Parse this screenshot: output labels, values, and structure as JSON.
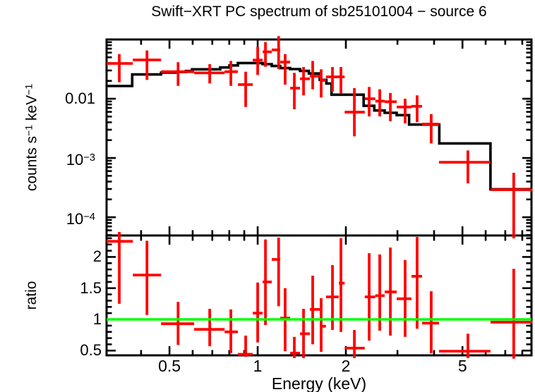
{
  "title": "Swift−XRT PC spectrum of sb25101004 − source 6",
  "colors": {
    "data": "#ff0000",
    "model": "#000000",
    "reference": "#00ff00",
    "axis": "#000000"
  },
  "chart_data": [
    {
      "type": "scatter",
      "subtype": "x-ray-spectrum-errorbars-with-model-histogram",
      "title": "Swift−XRT PC spectrum of sb25101004 − source 6",
      "ylabel_parts": [
        {
          "t": "counts s"
        },
        {
          "t": "−1",
          "sup": true
        },
        {
          "t": " keV"
        },
        {
          "t": "−1",
          "sup": true
        }
      ],
      "x_scale": "log",
      "y_scale": "log",
      "xlim": [
        0.305,
        8.6
      ],
      "ylim": [
        4.92e-05,
        0.1
      ],
      "xticks_major": [
        0.5,
        1,
        2,
        5
      ],
      "yticks": [
        {
          "v": 0.01,
          "parts": [
            {
              "t": "0.01"
            }
          ]
        },
        {
          "v": 0.001,
          "parts": [
            {
              "t": "10"
            },
            {
              "t": "−3",
              "sup": true
            }
          ]
        },
        {
          "v": 0.0001,
          "parts": [
            {
              "t": "10"
            },
            {
              "t": "−4",
              "sup": true
            }
          ]
        }
      ],
      "legend": null,
      "grid": false,
      "series": [
        {
          "name": "data",
          "color": "#ff0000",
          "style": "errorbar-cross",
          "points_format": [
            "E_lo_keV",
            "E_keV",
            "E_hi_keV",
            "rate_lo",
            "rate",
            "rate_hi"
          ],
          "points": [
            [
              0.305,
              0.337,
              0.375,
              0.019,
              0.0394,
              0.0567
            ],
            [
              0.375,
              0.419,
              0.468,
              0.0208,
              0.0452,
              0.0653
            ],
            [
              0.468,
              0.535,
              0.607,
              0.0165,
              0.0286,
              0.0413
            ],
            [
              0.607,
              0.686,
              0.771,
              0.0181,
              0.0273,
              0.0383
            ],
            [
              0.771,
              0.81,
              0.856,
              0.0165,
              0.0286,
              0.0434
            ],
            [
              0.856,
              0.91,
              0.962,
              0.00726,
              0.0173,
              0.0286
            ],
            [
              0.962,
              1.0,
              1.04,
              0.0252,
              0.0449,
              0.0754
            ],
            [
              1.04,
              1.063,
              1.117,
              0.0346,
              0.0619,
              0.0904
            ],
            [
              1.117,
              1.179,
              1.194,
              0.0316,
              0.0668,
              0.114
            ],
            [
              1.194,
              1.241,
              1.291,
              0.0173,
              0.0416,
              0.0567
            ],
            [
              1.291,
              1.334,
              1.395,
              0.00663,
              0.0151,
              0.0273
            ],
            [
              1.395,
              1.434,
              1.507,
              0.0114,
              0.0217,
              0.0343
            ],
            [
              1.507,
              1.541,
              1.629,
              0.0144,
              0.024,
              0.0434
            ],
            [
              1.629,
              1.647,
              1.71,
              0.0105,
              0.0204,
              0.0314
            ],
            [
              1.71,
              1.8,
              1.892,
              0.0132,
              0.0234,
              0.0343
            ],
            [
              1.892,
              1.924,
              1.981,
              0.0121,
              0.0234,
              0.0343
            ],
            [
              1.981,
              2.138,
              2.32,
              0.00232,
              0.00594,
              0.0151
            ],
            [
              2.32,
              2.402,
              2.52,
              0.00503,
              0.01,
              0.0158
            ],
            [
              2.52,
              2.61,
              2.713,
              0.00503,
              0.0091,
              0.0144
            ],
            [
              2.713,
              2.837,
              2.981,
              0.00418,
              0.0089,
              0.0125
            ],
            [
              2.981,
              3.186,
              3.349,
              0.00384,
              0.00726,
              0.01
            ],
            [
              3.349,
              3.501,
              3.64,
              0.00402,
              0.00746,
              0.0114
            ],
            [
              3.64,
              3.911,
              4.157,
              0.00176,
              0.00373,
              0.00551
            ],
            [
              4.157,
              5.218,
              6.231,
              0.000373,
              0.000848,
              0.00134
            ],
            [
              6.231,
              7.481,
              8.66,
              4.4e-05,
              0.000291,
              0.000563
            ]
          ]
        },
        {
          "name": "model",
          "color": "#000000",
          "style": "histogram",
          "segments_format": [
            "E_lo_keV",
            "E_hi_keV",
            "rate"
          ],
          "segments": [
            [
              0.305,
              0.373,
              0.0164
            ],
            [
              0.373,
              0.468,
              0.0257
            ],
            [
              0.468,
              0.524,
              0.0276
            ],
            [
              0.524,
              0.569,
              0.0283
            ],
            [
              0.569,
              0.597,
              0.0294
            ],
            [
              0.597,
              0.745,
              0.0314
            ],
            [
              0.745,
              0.801,
              0.0337
            ],
            [
              0.801,
              0.856,
              0.0365
            ],
            [
              0.856,
              1.04,
              0.04
            ],
            [
              1.04,
              1.117,
              0.0383
            ],
            [
              1.117,
              1.194,
              0.0357
            ],
            [
              1.194,
              1.291,
              0.0329
            ],
            [
              1.291,
              1.395,
              0.0316
            ],
            [
              1.395,
              1.495,
              0.0295
            ],
            [
              1.495,
              1.629,
              0.0267
            ],
            [
              1.629,
              1.716,
              0.0208
            ],
            [
              1.716,
              1.787,
              0.0181
            ],
            [
              1.787,
              2.299,
              0.0117
            ],
            [
              2.299,
              2.5,
              0.0076
            ],
            [
              2.5,
              2.713,
              0.00633
            ],
            [
              2.713,
              2.981,
              0.00578
            ],
            [
              2.981,
              3.286,
              0.00528
            ],
            [
              3.286,
              4.167,
              0.00366
            ],
            [
              4.167,
              6.231,
              0.00176
            ],
            [
              6.231,
              8.6,
              0.000297
            ]
          ]
        }
      ]
    },
    {
      "type": "scatter",
      "subtype": "ratio-residuals-errorbars",
      "ylabel": "ratio",
      "xlabel": "Energy (keV)",
      "x_scale": "log",
      "y_scale": "linear",
      "xlim": [
        0.305,
        8.6
      ],
      "ylim": [
        0.424,
        2.344
      ],
      "xticks_major": [
        0.5,
        1,
        2,
        5
      ],
      "xtick_labels": [
        "0.5",
        "1",
        "2",
        "5"
      ],
      "yticks": [
        {
          "v": 0.5,
          "label": "0.5"
        },
        {
          "v": 1,
          "label": "1"
        },
        {
          "v": 1.5,
          "label": "1.5"
        },
        {
          "v": 2,
          "label": "2"
        }
      ],
      "reference_line": {
        "y": 1,
        "color": "#00ff00"
      },
      "series": [
        {
          "name": "ratio",
          "color": "#ff0000",
          "style": "errorbar-cross",
          "points_format": [
            "E_lo_keV",
            "E_keV",
            "E_hi_keV",
            "ratio_lo",
            "ratio",
            "ratio_hi"
          ],
          "points": [
            [
              0.305,
              0.337,
              0.375,
              1.25,
              2.25,
              2.4
            ],
            [
              0.375,
              0.419,
              0.468,
              1.07,
              1.71,
              2.26
            ],
            [
              0.468,
              0.535,
              0.607,
              0.59,
              0.93,
              1.28
            ],
            [
              0.607,
              0.686,
              0.771,
              0.57,
              0.84,
              1.17
            ],
            [
              0.771,
              0.81,
              0.856,
              0.46,
              0.8,
              1.16
            ],
            [
              0.856,
              0.91,
              0.962,
              0.4,
              0.44,
              0.74
            ],
            [
              0.962,
              1.0,
              1.04,
              0.63,
              1.1,
              1.59
            ],
            [
              1.04,
              1.063,
              1.117,
              0.91,
              1.6,
              2.28
            ],
            [
              1.117,
              1.179,
              1.194,
              1.21,
              1.96,
              2.31
            ],
            [
              1.194,
              1.241,
              1.291,
              0.49,
              1.02,
              1.5
            ],
            [
              1.291,
              1.334,
              1.395,
              0.38,
              0.46,
              0.72
            ],
            [
              1.395,
              1.434,
              1.507,
              0.38,
              0.77,
              1.17
            ],
            [
              1.507,
              1.541,
              1.629,
              0.6,
              1.16,
              1.7
            ],
            [
              1.629,
              1.647,
              1.71,
              0.48,
              0.89,
              1.34
            ],
            [
              1.71,
              1.8,
              1.892,
              0.83,
              1.36,
              1.87
            ],
            [
              1.892,
              1.924,
              1.981,
              0.8,
              1.58,
              2.3
            ],
            [
              1.981,
              2.138,
              2.32,
              0.38,
              0.54,
              0.83
            ],
            [
              2.32,
              2.402,
              2.52,
              0.66,
              1.36,
              2.06
            ],
            [
              2.52,
              2.61,
              2.713,
              0.82,
              1.38,
              2.04
            ],
            [
              2.713,
              2.837,
              2.981,
              0.74,
              1.44,
              2.15
            ],
            [
              2.981,
              3.186,
              3.349,
              0.72,
              1.33,
              1.95
            ],
            [
              3.349,
              3.501,
              3.64,
              0.85,
              1.69,
              2.32
            ],
            [
              3.64,
              3.911,
              4.157,
              0.46,
              0.94,
              1.45
            ],
            [
              4.157,
              5.218,
              6.231,
              0.38,
              0.49,
              0.77
            ],
            [
              6.231,
              7.481,
              8.66,
              0.37,
              0.955,
              1.81
            ]
          ]
        }
      ]
    }
  ]
}
